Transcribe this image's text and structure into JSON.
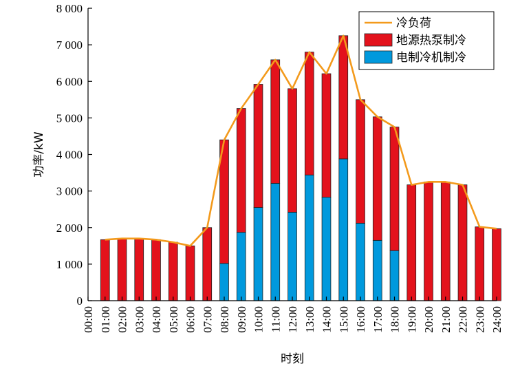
{
  "chart_data": {
    "type": "bar",
    "stacked": true,
    "xlabel": "时刻",
    "ylabel": "功率/kW",
    "ylim": [
      0,
      8000
    ],
    "yticks": [
      0,
      1000,
      2000,
      3000,
      4000,
      5000,
      6000,
      7000,
      8000
    ],
    "ytick_labels": [
      "0",
      "1 000",
      "2 000",
      "3 000",
      "4 000",
      "5 000",
      "6 000",
      "7 000",
      "8 000"
    ],
    "x_ticks": [
      "00:00",
      "01:00",
      "02:00",
      "03:00",
      "04:00",
      "05:00",
      "06:00",
      "07:00",
      "08:00",
      "09:00",
      "10:00",
      "11:00",
      "12:00",
      "13:00",
      "14:00",
      "15:00",
      "16:00",
      "17:00",
      "18:00",
      "19:00",
      "20:00",
      "21:00",
      "22:00",
      "23:00",
      "24:00"
    ],
    "categories": [
      "01:00",
      "02:00",
      "03:00",
      "04:00",
      "05:00",
      "06:00",
      "07:00",
      "08:00",
      "09:00",
      "10:00",
      "11:00",
      "12:00",
      "13:00",
      "14:00",
      "15:00",
      "16:00",
      "17:00",
      "18:00",
      "19:00",
      "20:00",
      "21:00",
      "22:00",
      "23:00",
      "24:00"
    ],
    "series": [
      {
        "name": "电制冷机制冷",
        "color": "#0099dd",
        "values": [
          0,
          0,
          0,
          0,
          0,
          0,
          0,
          1020,
          1870,
          2550,
          3210,
          2420,
          3440,
          2830,
          3880,
          2120,
          1650,
          1370,
          0,
          0,
          0,
          0,
          0,
          0
        ]
      },
      {
        "name": "地源热泵制冷",
        "color": "#e3121c",
        "values": [
          1670,
          1700,
          1700,
          1670,
          1600,
          1500,
          2000,
          3380,
          3390,
          3370,
          3380,
          3380,
          3360,
          3380,
          3370,
          3380,
          3380,
          3380,
          3170,
          3250,
          3250,
          3170,
          2020,
          1970
        ]
      }
    ],
    "line": {
      "name": "冷负荷",
      "color": "#f39a1c",
      "x": [
        "01:00",
        "02:00",
        "03:00",
        "04:00",
        "05:00",
        "06:00",
        "07:00",
        "08:00",
        "09:00",
        "10:00",
        "11:00",
        "12:00",
        "13:00",
        "14:00",
        "15:00",
        "16:00",
        "17:00",
        "18:00",
        "19:00",
        "20:00",
        "21:00",
        "22:00",
        "23:00",
        "24:00"
      ],
      "values": [
        1670,
        1700,
        1700,
        1670,
        1600,
        1500,
        2000,
        4400,
        5260,
        5920,
        6590,
        5800,
        6800,
        6210,
        7250,
        5500,
        5030,
        4750,
        3170,
        3250,
        3250,
        3170,
        2020,
        1970
      ]
    },
    "legend": {
      "placement": "top-right",
      "entries": [
        "冷负荷",
        "地源热泵制冷",
        "电制冷机制冷"
      ]
    },
    "grid": false
  }
}
